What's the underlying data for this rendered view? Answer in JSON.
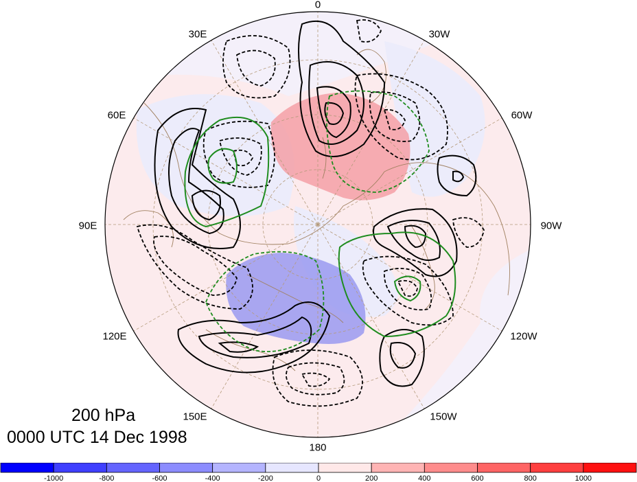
{
  "title": {
    "level": "200 hPa",
    "time": "0000 UTC 14 Dec 1998"
  },
  "longitude_labels": [
    "0",
    "30W",
    "60W",
    "90W",
    "120W",
    "150W",
    "180",
    "150E",
    "120E",
    "90E",
    "60E",
    "30E"
  ],
  "colorbar": {
    "colors": [
      "#0000ff",
      "#3f3fff",
      "#6464ff",
      "#8c8cff",
      "#b4b4ff",
      "#e6e6ff",
      "#ffe8e8",
      "#ffb4b4",
      "#ff8c8c",
      "#ff6464",
      "#ff3f3f",
      "#ff1010"
    ],
    "tick_labels": [
      "-1000",
      "-800",
      "-600",
      "-400",
      "-200",
      "0",
      "200",
      "400",
      "600",
      "800",
      "1000"
    ]
  },
  "colors": {
    "positive_contour": "#000000",
    "negative_contour": "#000000",
    "green_contour": "#1e8c1e",
    "coastline": "#a08060",
    "grid": "#b49a7a",
    "shade_positive": "#f5a0a6",
    "shade_negative": "#9a9af0"
  }
}
